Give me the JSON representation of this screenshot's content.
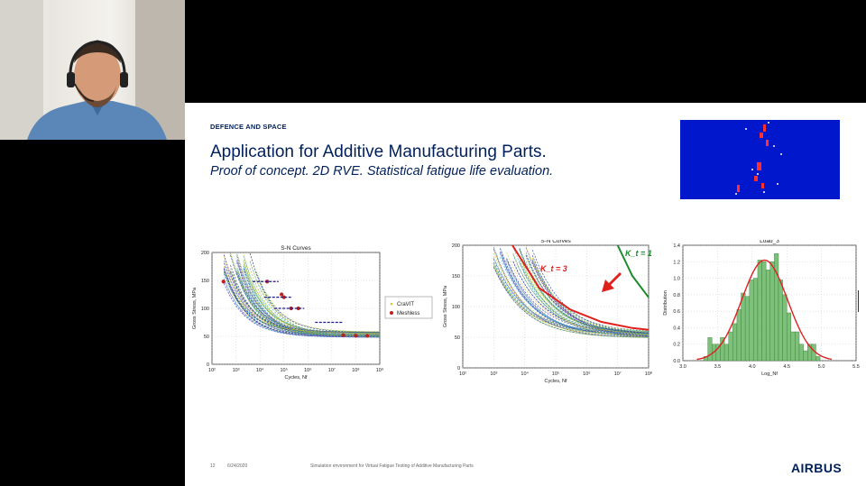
{
  "slide": {
    "kicker": "DEFENCE AND SPACE",
    "title": "Application for Additive Manufacturing Parts.",
    "subtitle": "Proof of concept. 2D RVE. Statistical fatigue life evaluation.",
    "footer": {
      "page": "12",
      "date": "6/24/2020",
      "caption": "Simulation  environment  for Virtual Fatigue  Testing  of Additive Manufacturing  Parts",
      "brand": "AIRBUS"
    }
  },
  "chart_data": [
    {
      "type": "line",
      "title": "S-N Curves",
      "xlabel": "Cycles, Nf",
      "ylabel": "Gross Stress, MPa",
      "x_scale": "log",
      "xlim": [
        100,
        1000000000
      ],
      "ylim": [
        0,
        200
      ],
      "y_ticks": [
        "0",
        "50",
        "100",
        "150",
        "200"
      ],
      "x_ticks": [
        "10²",
        "10³",
        "10⁴",
        "10⁵",
        "10⁶",
        "10⁷",
        "10⁸",
        "10⁹"
      ],
      "legend": [
        "CraVIT",
        "Meshless"
      ],
      "legend_position": "outside-right",
      "series": [
        {
          "name": "Meshless",
          "x": [
            300,
            20000,
            80000,
            100000,
            200000,
            400000,
            30000000,
            100000000,
            300000000
          ],
          "y": [
            148,
            148,
            125,
            120,
            100,
            100,
            52,
            51,
            51
          ]
        }
      ]
    },
    {
      "type": "line",
      "title": "S-N Curves",
      "xlabel": "Cycles, Nf",
      "ylabel": "Gross Stress, MPa",
      "x_scale": "log",
      "xlim": [
        100,
        100000000
      ],
      "ylim": [
        0,
        200
      ],
      "y_ticks": [
        "0",
        "50",
        "100",
        "150",
        "200"
      ],
      "x_ticks": [
        "10²",
        "10³",
        "10⁴",
        "10⁵",
        "10⁶",
        "10⁷",
        "10⁸"
      ],
      "annotations": [
        "K_t = 3",
        "K_t = 1"
      ],
      "series": [
        {
          "name": "K_t = 3",
          "x": [
            4000,
            30000,
            300000,
            3000000,
            30000000,
            100000000
          ],
          "y": [
            200,
            130,
            95,
            75,
            65,
            62
          ]
        },
        {
          "name": "K_t = 1",
          "x": [
            10000000,
            30000000,
            100000000
          ],
          "y": [
            200,
            150,
            115
          ]
        }
      ]
    },
    {
      "type": "bar",
      "title": "Load_3",
      "xlabel": "Log_Nf",
      "ylabel": "Distribution",
      "xlim": [
        3.0,
        5.5
      ],
      "ylim": [
        0,
        1.4
      ],
      "x_ticks": [
        "3.0",
        "3.5",
        "4.0",
        "4.5",
        "5.0",
        "5.5"
      ],
      "y_ticks": [
        "0.0",
        "0.2",
        "0.4",
        "0.6",
        "0.8",
        "1.0",
        "1.2",
        "1.4"
      ],
      "bin_width": 0.06,
      "bins": [
        3.3,
        3.36,
        3.42,
        3.48,
        3.54,
        3.6,
        3.66,
        3.72,
        3.78,
        3.84,
        3.9,
        3.96,
        4.02,
        4.08,
        4.14,
        4.2,
        4.26,
        4.32,
        4.38,
        4.44,
        4.5,
        4.56,
        4.62,
        4.68,
        4.74,
        4.8,
        4.86,
        4.92
      ],
      "values": [
        0.05,
        0.28,
        0.2,
        0.2,
        0.28,
        0.2,
        0.35,
        0.45,
        0.62,
        0.82,
        0.78,
        0.98,
        1.0,
        1.22,
        1.2,
        1.1,
        1.2,
        1.3,
        0.98,
        0.8,
        0.58,
        0.35,
        0.35,
        0.2,
        0.12,
        0.2,
        0.2,
        0.05
      ],
      "fit_curve": {
        "name": "normal fit",
        "mean": 4.18,
        "sd": 0.33
      }
    }
  ]
}
